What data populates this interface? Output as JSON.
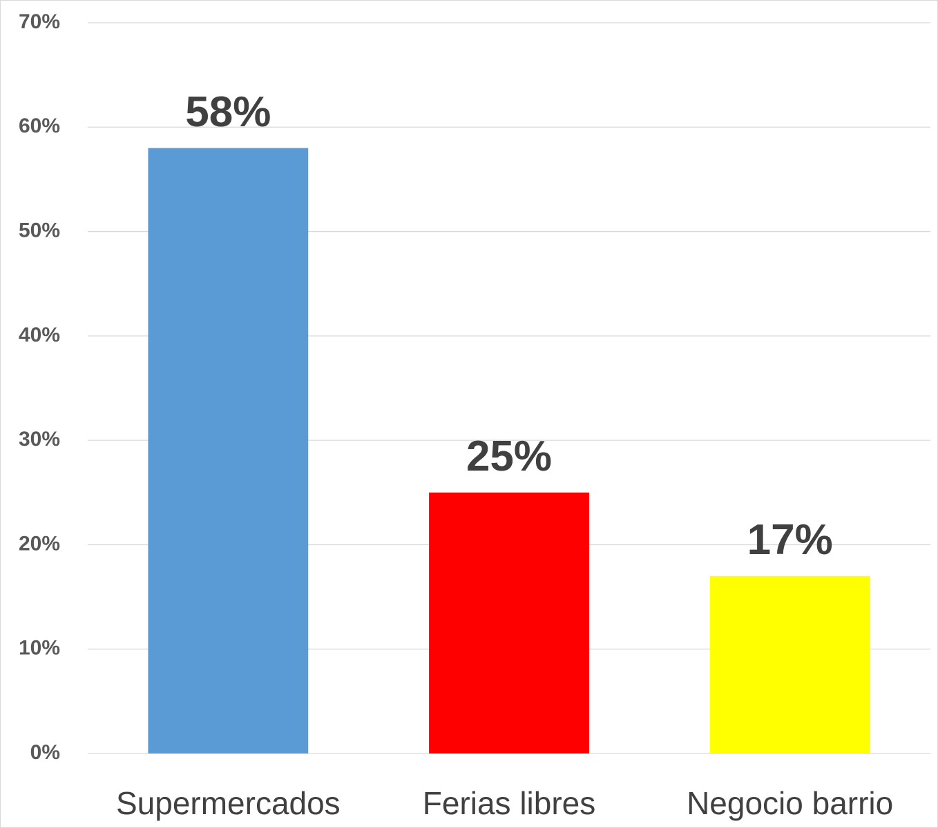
{
  "chart_data": {
    "type": "bar",
    "categories": [
      "Supermercados",
      "Ferias libres",
      "Negocio barrio"
    ],
    "values": [
      58,
      25,
      17
    ],
    "value_labels": [
      "58%",
      "25%",
      "17%"
    ],
    "colors": [
      "#5b9bd5",
      "#ff0000",
      "#ffff00"
    ],
    "ylim": [
      0,
      70
    ],
    "yticks": [
      {
        "value": 0,
        "label": "0%"
      },
      {
        "value": 10,
        "label": "10%"
      },
      {
        "value": 20,
        "label": "20%"
      },
      {
        "value": 30,
        "label": "30%"
      },
      {
        "value": 40,
        "label": "40%"
      },
      {
        "value": 50,
        "label": "50%"
      },
      {
        "value": 60,
        "label": "60%"
      },
      {
        "value": 70,
        "label": "70%"
      }
    ],
    "grid": true
  }
}
